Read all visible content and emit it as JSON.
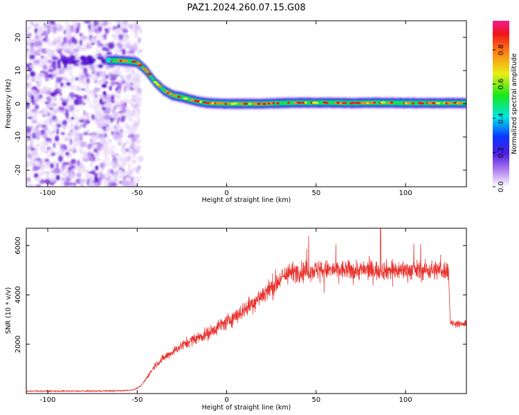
{
  "title": "PAZ1.2024.260.07.15.G08",
  "chart_data": [
    {
      "type": "heatmap",
      "title": "PAZ1.2024.260.07.15.G08",
      "xlabel": "Height of straight line (km)",
      "ylabel": "Frequency (Hz)",
      "xlim": [
        -112,
        134
      ],
      "ylim": [
        -25,
        25
      ],
      "xticks": [
        -100,
        -50,
        0,
        50,
        100
      ],
      "yticks": [
        -20,
        -10,
        0,
        10,
        20
      ],
      "ridge_x": [
        -67,
        -60,
        -55,
        -50,
        -45,
        -40,
        -35,
        -30,
        -25,
        -20,
        -15,
        -10,
        0,
        10,
        20,
        30,
        40,
        50,
        60,
        70,
        80,
        90,
        100,
        110,
        120,
        134
      ],
      "ridge_y": [
        13,
        13,
        12.8,
        12.5,
        10,
        6.5,
        4,
        2.5,
        2,
        1.2,
        0.6,
        0.2,
        0,
        0,
        0,
        0.2,
        0.3,
        0.3,
        0.3,
        0.2,
        0.3,
        0.3,
        0.2,
        0.2,
        0.2,
        0.2
      ],
      "noise_region_x": [
        -112,
        -48
      ],
      "colorbar": {
        "label": "Normalized spectral amplitude",
        "range": [
          0,
          0.97
        ],
        "ticks": [
          0.0,
          0.2,
          0.4,
          0.6,
          0.8
        ]
      },
      "grid": false
    },
    {
      "type": "line",
      "xlabel": "Height of straight line (km)",
      "ylabel": "SNR (10 * v/v)",
      "xlim": [
        -112,
        134
      ],
      "ylim": [
        0,
        6700
      ],
      "xticks": [
        -100,
        -50,
        0,
        50,
        100
      ],
      "yticks": [
        2000,
        4000,
        6000
      ],
      "color": "#e8322d",
      "envelope_x": [
        -112,
        -80,
        -60,
        -52,
        -48,
        -45,
        -40,
        -35,
        -30,
        -25,
        -20,
        -15,
        -10,
        -5,
        0,
        5,
        10,
        15,
        20,
        25,
        30,
        35,
        40,
        50,
        60,
        70,
        80,
        90,
        100,
        110,
        120,
        124,
        125,
        126,
        134
      ],
      "envelope_y": [
        100,
        100,
        110,
        150,
        300,
        600,
        1150,
        1450,
        1700,
        1950,
        2150,
        2300,
        2450,
        2700,
        2900,
        3150,
        3400,
        3700,
        4000,
        4300,
        4650,
        4900,
        4950,
        5000,
        5000,
        5000,
        5000,
        5000,
        5000,
        5000,
        5000,
        5000,
        2900,
        2850,
        2800
      ],
      "peak": 6700,
      "grid": false
    }
  ]
}
